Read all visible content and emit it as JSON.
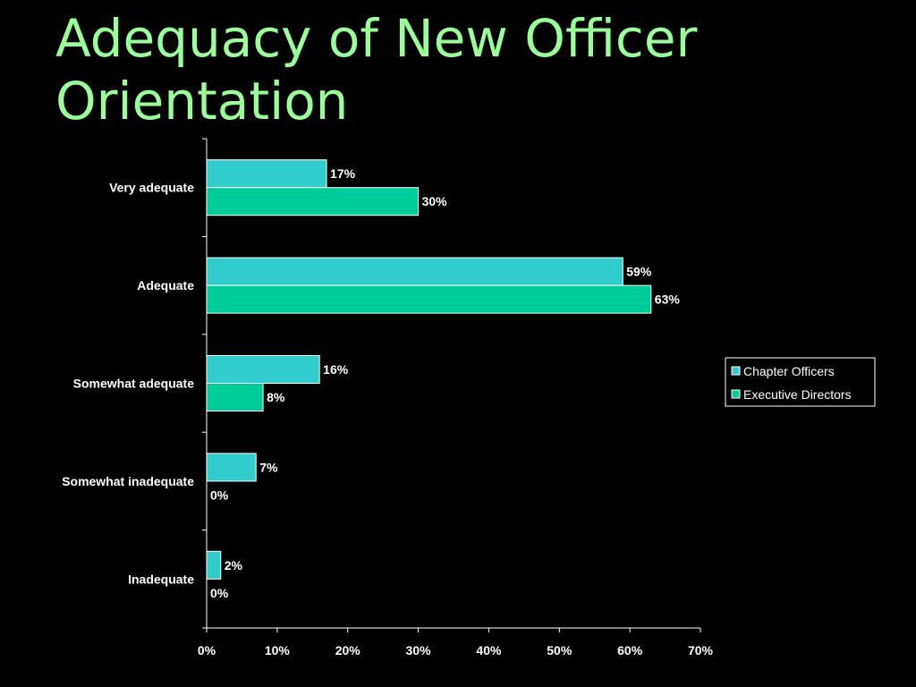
{
  "slide": {
    "title_line1": "Adequacy of New Officer",
    "title_line2": "Orientation"
  },
  "colors": {
    "background": "#000000",
    "title": "#99ff99",
    "axis": "#ffffff",
    "text": "#ffffff"
  },
  "chart_data": {
    "type": "bar",
    "orientation": "horizontal",
    "categories": [
      "Very adequate",
      "Adequate",
      "Somewhat adequate",
      "Somewhat inadequate",
      "Inadequate"
    ],
    "series": [
      {
        "name": "Chapter Officers",
        "values": [
          17,
          59,
          16,
          7,
          2
        ],
        "color": "#33cccc"
      },
      {
        "name": "Executive Directors",
        "values": [
          30,
          63,
          8,
          0,
          0
        ],
        "color": "#00cc99"
      }
    ],
    "data_labels": {
      "Chapter Officers": [
        "17%",
        "59%",
        "16%",
        "7%",
        "2%"
      ],
      "Executive Directors": [
        "30%",
        "63%",
        "8%",
        "0%",
        "0%"
      ]
    },
    "x_ticks": [
      "0%",
      "10%",
      "20%",
      "30%",
      "40%",
      "50%",
      "60%",
      "70%"
    ],
    "xlim": [
      0,
      70
    ],
    "grid": false,
    "legend": {
      "position": "right",
      "entries": [
        "Chapter Officers",
        "Executive Directors"
      ]
    }
  }
}
